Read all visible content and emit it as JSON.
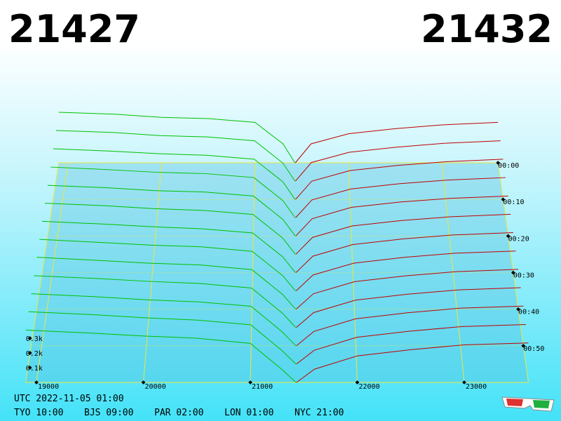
{
  "chart_data": {
    "type": "depth3d",
    "bid_price": 21427,
    "ask_price": 21432,
    "bid_color": "#00c000",
    "ask_color": "#c00000",
    "xlim": [
      18900,
      23600
    ],
    "xticks": [
      19000,
      20000,
      21000,
      22000,
      23000
    ],
    "tlim": [
      0,
      60
    ],
    "tticks": [
      {
        "value": 0,
        "label": "00:00"
      },
      {
        "value": 10,
        "label": "00:10"
      },
      {
        "value": 20,
        "label": "00:20"
      },
      {
        "value": 30,
        "label": "00:30"
      },
      {
        "value": 40,
        "label": "00:40"
      },
      {
        "value": 50,
        "label": "00:50"
      }
    ],
    "zticks": [
      {
        "value": 100,
        "label": "0.1k"
      },
      {
        "value": 200,
        "label": "0.2k"
      },
      {
        "value": 300,
        "label": "0.3k"
      }
    ],
    "bid_prices": [
      18900,
      19500,
      20000,
      20500,
      21000,
      21300,
      21427
    ],
    "ask_prices": [
      21432,
      21600,
      22000,
      22500,
      23000,
      23600
    ],
    "snapshot_times": [
      0,
      5,
      10,
      15,
      20,
      25,
      30,
      35,
      40,
      45,
      50,
      55,
      60
    ],
    "bids": [
      [
        400,
        385,
        360,
        350,
        320,
        150,
        0
      ],
      [
        395,
        380,
        355,
        345,
        315,
        140,
        0
      ],
      [
        390,
        372,
        352,
        340,
        310,
        135,
        0
      ],
      [
        385,
        365,
        345,
        335,
        305,
        130,
        0
      ],
      [
        380,
        362,
        340,
        330,
        300,
        125,
        0
      ],
      [
        378,
        360,
        338,
        325,
        295,
        120,
        0
      ],
      [
        375,
        355,
        335,
        320,
        290,
        115,
        0
      ],
      [
        372,
        350,
        330,
        318,
        285,
        110,
        0
      ],
      [
        370,
        348,
        328,
        315,
        282,
        105,
        0
      ],
      [
        365,
        345,
        325,
        310,
        278,
        100,
        0
      ],
      [
        362,
        342,
        320,
        305,
        275,
        95,
        0
      ],
      [
        360,
        340,
        318,
        302,
        270,
        90,
        0
      ],
      [
        355,
        335,
        315,
        300,
        265,
        85,
        0
      ]
    ],
    "asks": [
      [
        0,
        150,
        230,
        270,
        300,
        320
      ],
      [
        0,
        145,
        225,
        265,
        295,
        315
      ],
      [
        0,
        140,
        222,
        262,
        290,
        310
      ],
      [
        0,
        135,
        218,
        258,
        286,
        305
      ],
      [
        0,
        130,
        215,
        255,
        282,
        300
      ],
      [
        0,
        125,
        210,
        250,
        278,
        296
      ],
      [
        0,
        120,
        205,
        246,
        275,
        292
      ],
      [
        0,
        115,
        200,
        242,
        272,
        288
      ],
      [
        0,
        110,
        196,
        238,
        268,
        284
      ],
      [
        0,
        105,
        192,
        234,
        265,
        280
      ],
      [
        0,
        100,
        188,
        230,
        262,
        276
      ],
      [
        0,
        95,
        184,
        226,
        258,
        272
      ],
      [
        0,
        90,
        180,
        222,
        255,
        268
      ]
    ],
    "clock": "UTC 2022-11-05 01:00",
    "zones": [
      "TYO 10:00",
      "BJS 09:00",
      "PAR 02:00",
      "LON 01:00",
      "NYC 21:00"
    ]
  }
}
